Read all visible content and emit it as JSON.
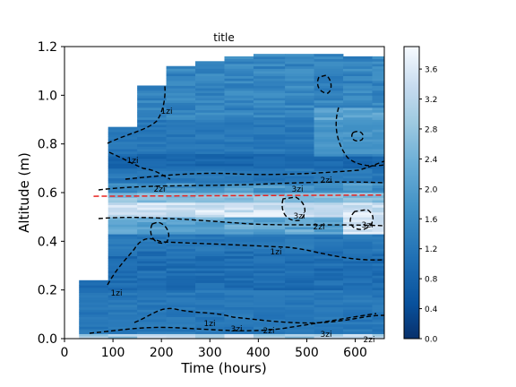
{
  "chart_data": {
    "type": "heatmap",
    "title": "title",
    "xlabel": "Time (hours)",
    "ylabel": "Altitude (m)",
    "xlim": [
      0,
      660
    ],
    "ylim": [
      0,
      1.2
    ],
    "xticks": [
      "0",
      "100",
      "200",
      "300",
      "400",
      "500",
      "600"
    ],
    "xtick_values": [
      0,
      100,
      200,
      300,
      400,
      500,
      600
    ],
    "yticks": [
      "0.0",
      "0.2",
      "0.4",
      "0.6",
      "0.8",
      "1.0",
      "1.2"
    ],
    "ytick_values": [
      0,
      0.2,
      0.4,
      0.6,
      0.8,
      1.0,
      1.2
    ],
    "colorbar": {
      "range": [
        0,
        3.9
      ],
      "ticks": [
        "0.0",
        "0.4",
        "0.8",
        "1.2",
        "1.6",
        "2.0",
        "2.4",
        "2.8",
        "3.2",
        "3.6"
      ],
      "tick_values": [
        0,
        0.4,
        0.8,
        1.2,
        1.6,
        2.0,
        2.4,
        2.8,
        3.2,
        3.6
      ],
      "colormap": "Blues_r"
    },
    "columns": [
      {
        "x0": 30,
        "x1": 90,
        "ymax": 0.24
      },
      {
        "x0": 90,
        "x1": 150,
        "ymax": 0.87
      },
      {
        "x0": 150,
        "x1": 210,
        "ymax": 1.04
      },
      {
        "x0": 210,
        "x1": 270,
        "ymax": 1.12
      },
      {
        "x0": 270,
        "x1": 330,
        "ymax": 1.14
      },
      {
        "x0": 330,
        "x1": 390,
        "ymax": 1.16
      },
      {
        "x0": 390,
        "x1": 455,
        "ymax": 1.17
      },
      {
        "x0": 455,
        "x1": 515,
        "ymax": 1.17
      },
      {
        "x0": 515,
        "x1": 575,
        "ymax": 1.17
      },
      {
        "x0": 575,
        "x1": 635,
        "ymax": 1.16
      },
      {
        "x0": 635,
        "x1": 660,
        "ymax": 1.16
      }
    ],
    "reference_line": {
      "y_start": 0.585,
      "y_end": 0.59,
      "x_start": 60,
      "x_end": 660,
      "color": "#e8231f",
      "style": "dashed"
    },
    "contour_labels": [
      "1zi",
      "1zi",
      "1zi",
      "1zi",
      "1zi",
      "2zi",
      "2zi",
      "2zi",
      "2zi",
      "2zi",
      "3zi",
      "3zi",
      "3zi",
      "3zi",
      "3zi"
    ]
  }
}
